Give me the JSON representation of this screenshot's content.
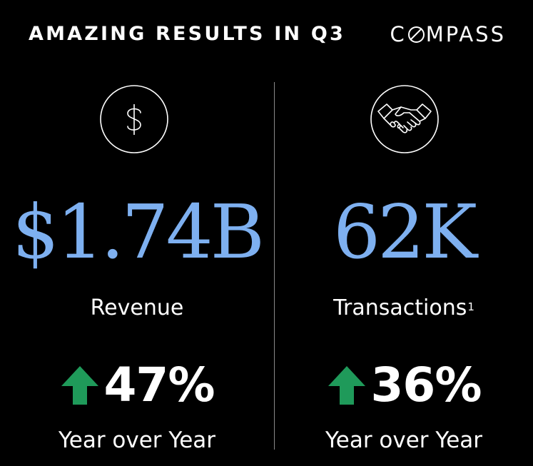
{
  "header": {
    "title": "AMAZING RESULTS IN Q3",
    "brand_prefix": "C",
    "brand_suffix": "MPASS"
  },
  "colors": {
    "background": "#000000",
    "value_blue": "#7eb0f0",
    "arrow_green": "#1f9a5a",
    "text": "#ffffff"
  },
  "metrics": [
    {
      "icon": "dollar-circle-icon",
      "value": "$1.74B",
      "label": "Revenue",
      "footnote": "",
      "change_icon": "up-arrow-icon",
      "change": "47%",
      "period": "Year over Year"
    },
    {
      "icon": "handshake-circle-icon",
      "value": "62K",
      "label": "Transactions",
      "footnote": "1",
      "change_icon": "up-arrow-icon",
      "change": "36%",
      "period": "Year over Year"
    }
  ]
}
